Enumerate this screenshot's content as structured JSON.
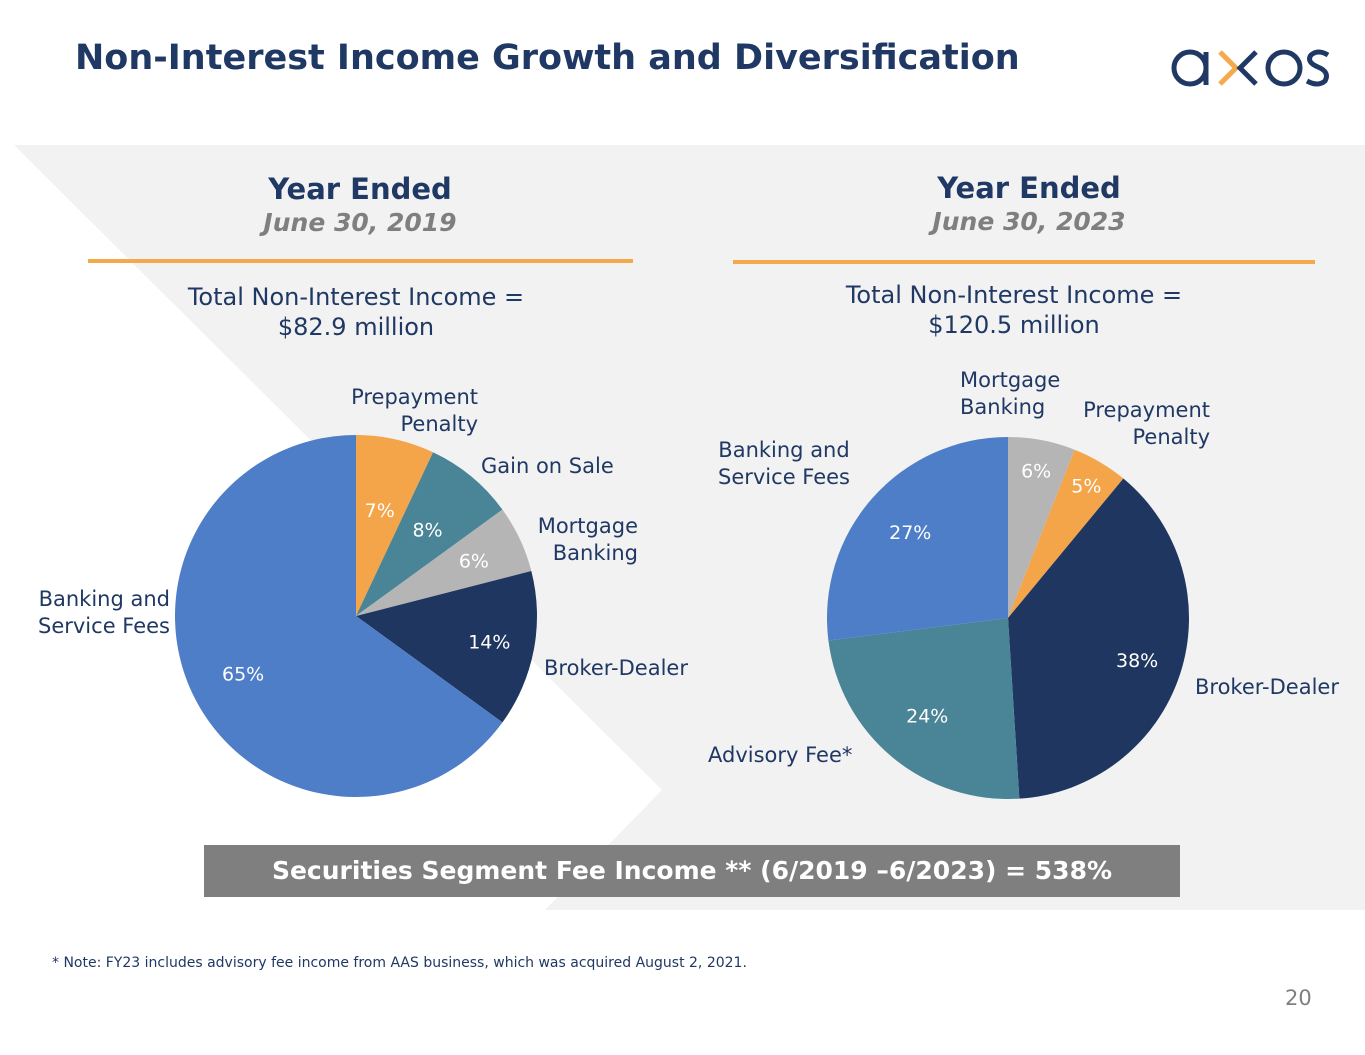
{
  "title": "Non-Interest Income Growth and Diversification",
  "logo": {
    "text": "axos",
    "tm": "™",
    "colors": {
      "main": "#1f3864",
      "accent": "#f4a94a"
    }
  },
  "colors": {
    "navy": "#1f3864",
    "orange": "#f4a94a",
    "gray_text": "#7f7f7f",
    "panel": "#f2f2f2"
  },
  "chart_data": [
    {
      "type": "pie",
      "title": "Year Ended",
      "subtitle": "June 30, 2019",
      "total_label": "Total Non-Interest Income =",
      "total_value": "$82.9 million",
      "slices": [
        {
          "name": "Prepayment Penalty",
          "value": 7,
          "label": "7%",
          "color": "#f4a54a"
        },
        {
          "name": "Gain on Sale",
          "value": 8,
          "label": "8%",
          "color": "#4a8497"
        },
        {
          "name": "Mortgage Banking",
          "value": 6,
          "label": "6%",
          "color": "#b5b5b5"
        },
        {
          "name": "Broker-Dealer",
          "value": 14,
          "label": "14%",
          "color": "#1f3660"
        },
        {
          "name": "Banking and Service Fees",
          "value": 65,
          "label": "65%",
          "color": "#4f7ec8"
        }
      ]
    },
    {
      "type": "pie",
      "title": "Year Ended",
      "subtitle": "June 30, 2023",
      "total_label": "Total Non-Interest Income =",
      "total_value": "$120.5 million",
      "slices": [
        {
          "name": "Mortgage Banking",
          "value": 6,
          "label": "6%",
          "color": "#b5b5b5"
        },
        {
          "name": "Prepayment Penalty",
          "value": 5,
          "label": "5%",
          "color": "#f4a54a"
        },
        {
          "name": "Broker-Dealer",
          "value": 38,
          "label": "38%",
          "color": "#1f3660"
        },
        {
          "name": "Advisory Fee*",
          "value": 24,
          "label": "24%",
          "color": "#4a8497"
        },
        {
          "name": "Banking and Service Fees",
          "value": 27,
          "label": "27%",
          "color": "#4f7ec8"
        }
      ]
    }
  ],
  "banner": "Securities Segment Fee Income ** (6/2019 –6/2023) = 538%",
  "note": "* Note: FY23 includes advisory fee income from AAS business, which was acquired August 2, 2021.",
  "page_number": "20"
}
